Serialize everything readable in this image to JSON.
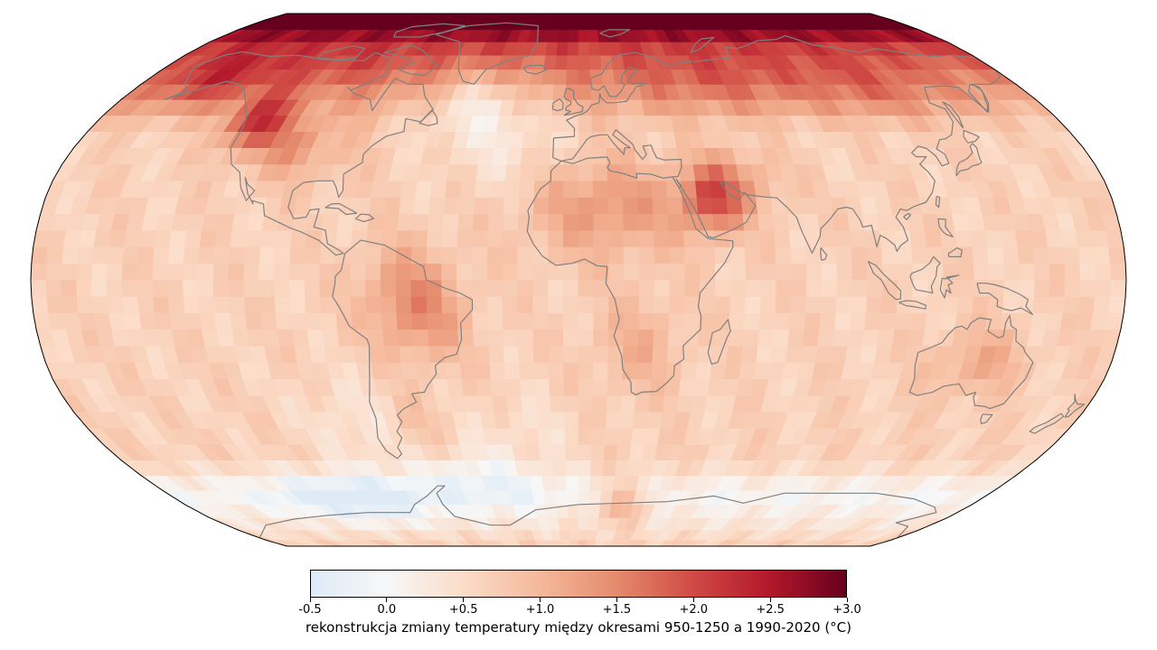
{
  "map": {
    "projection": "Robinson",
    "grid_cell_deg": 5,
    "coastline_color": "#808080",
    "outline_color": "#000000"
  },
  "colorbar": {
    "colormap": "RdBu_r (diverging blue-white-red)",
    "min": -0.5,
    "max": 3.0,
    "tick_values": [
      -0.5,
      0.0,
      0.5,
      1.0,
      1.5,
      2.0,
      2.5,
      3.0
    ],
    "tick_labels": [
      "-0.5",
      "0.0",
      "+0.5",
      "+1.0",
      "+1.5",
      "+2.0",
      "+2.5",
      "+3.0"
    ],
    "stops": [
      {
        "v": -0.5,
        "color": "#deebf7"
      },
      {
        "v": 0.0,
        "color": "#f7f7f7"
      },
      {
        "v": 0.5,
        "color": "#fbdcc8"
      },
      {
        "v": 1.0,
        "color": "#f5b89a"
      },
      {
        "v": 1.5,
        "color": "#e58a6d"
      },
      {
        "v": 2.0,
        "color": "#d04a44"
      },
      {
        "v": 2.5,
        "color": "#b2182b"
      },
      {
        "v": 3.0,
        "color": "#67001f"
      }
    ],
    "label": "rekonstrukcja zmiany temperatury między okresami 950-1250 a 1990-2020 (°C)"
  },
  "regions": [
    {
      "name": "Arctic / northern Eurasia",
      "approx_change_c": 2.5
    },
    {
      "name": "Western North America (Rockies)",
      "approx_change_c": 2.3
    },
    {
      "name": "Middle East / Arabia",
      "approx_change_c": 2.0
    },
    {
      "name": "North Africa / Sahara",
      "approx_change_c": 1.4
    },
    {
      "name": "Amazon / Brazil",
      "approx_change_c": 1.4
    },
    {
      "name": "Australia",
      "approx_change_c": 1.3
    },
    {
      "name": "Central Asia / Siberia",
      "approx_change_c": 2.2
    },
    {
      "name": "Tropical oceans",
      "approx_change_c": 0.8
    },
    {
      "name": "North Atlantic (south of Greenland)",
      "approx_change_c": 0.1
    },
    {
      "name": "Southern Ocean / Antarctic coast",
      "approx_change_c": -0.2
    },
    {
      "name": "East Antarctica",
      "approx_change_c": 1.6
    }
  ]
}
